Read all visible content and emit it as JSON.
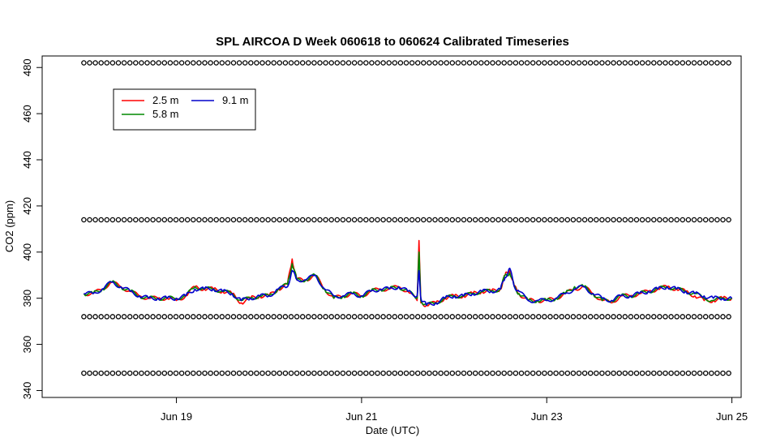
{
  "chart_data": {
    "type": "line",
    "title": "SPL AIRCOA D  Week 060618 to 060624  Calibrated Timeseries",
    "xlabel": "Date (UTC)",
    "ylabel": "CO2 (ppm)",
    "x_unit": "day of June 2006 (UTC)",
    "xlim": [
      17.55,
      25.1
    ],
    "ylim": [
      337,
      485
    ],
    "xticks": [
      {
        "value": 19,
        "label": "Jun 19"
      },
      {
        "value": 21,
        "label": "Jun 21"
      },
      {
        "value": 23,
        "label": "Jun 23"
      },
      {
        "value": 25,
        "label": "Jun 25"
      }
    ],
    "yticks": [
      340,
      360,
      380,
      400,
      420,
      440,
      460,
      480
    ],
    "grid": false,
    "legend": {
      "placement": "top-left"
    },
    "series": [
      {
        "name": "2.5 m",
        "color": "#ff0000",
        "x": [
          18.0,
          18.1,
          18.2,
          18.3,
          18.4,
          18.5,
          18.6,
          18.7,
          18.8,
          18.9,
          19.0,
          19.1,
          19.2,
          19.3,
          19.4,
          19.5,
          19.6,
          19.7,
          19.8,
          19.9,
          20.0,
          20.1,
          20.2,
          20.25,
          20.3,
          20.4,
          20.5,
          20.6,
          20.7,
          20.8,
          20.9,
          21.0,
          21.1,
          21.2,
          21.3,
          21.4,
          21.5,
          21.6,
          21.62,
          21.64,
          21.7,
          21.8,
          21.9,
          22.0,
          22.1,
          22.2,
          22.3,
          22.4,
          22.5,
          22.55,
          22.6,
          22.65,
          22.7,
          22.8,
          22.9,
          23.0,
          23.1,
          23.2,
          23.3,
          23.4,
          23.5,
          23.6,
          23.7,
          23.8,
          23.9,
          24.0,
          24.1,
          24.2,
          24.3,
          24.4,
          24.5,
          24.6,
          24.7,
          24.8,
          24.9,
          25.0
        ],
        "y": [
          382,
          382,
          384,
          387,
          385,
          383,
          381,
          380,
          380,
          380,
          379,
          381,
          385,
          384,
          384,
          383,
          382,
          378,
          380,
          381,
          381,
          384,
          386,
          397,
          388,
          388,
          390,
          384,
          380,
          381,
          382,
          381,
          383,
          384,
          384,
          385,
          383,
          379,
          405,
          378,
          377,
          378,
          380,
          381,
          381,
          382,
          383,
          383,
          384,
          390,
          392,
          385,
          382,
          379,
          379,
          379,
          380,
          382,
          384,
          385,
          382,
          379,
          378,
          381,
          381,
          382,
          383,
          384,
          385,
          384,
          383,
          381,
          379,
          379,
          380,
          380
        ]
      },
      {
        "name": "5.8 m",
        "color": "#008800",
        "x": [
          18.0,
          18.1,
          18.2,
          18.3,
          18.4,
          18.5,
          18.6,
          18.7,
          18.8,
          18.9,
          19.0,
          19.1,
          19.2,
          19.3,
          19.4,
          19.5,
          19.6,
          19.7,
          19.8,
          19.9,
          20.0,
          20.1,
          20.2,
          20.25,
          20.3,
          20.4,
          20.5,
          20.6,
          20.7,
          20.8,
          20.9,
          21.0,
          21.1,
          21.2,
          21.3,
          21.4,
          21.5,
          21.6,
          21.62,
          21.64,
          21.7,
          21.8,
          21.9,
          22.0,
          22.1,
          22.2,
          22.3,
          22.4,
          22.5,
          22.55,
          22.6,
          22.65,
          22.7,
          22.8,
          22.9,
          23.0,
          23.1,
          23.2,
          23.3,
          23.4,
          23.5,
          23.6,
          23.7,
          23.8,
          23.9,
          24.0,
          24.1,
          24.2,
          24.3,
          24.4,
          24.5,
          24.6,
          24.7,
          24.8,
          24.9,
          25.0
        ],
        "y": [
          382,
          382,
          384,
          387,
          385,
          383,
          381,
          380,
          380,
          380,
          380,
          381,
          385,
          384,
          384,
          383,
          382,
          379,
          380,
          381,
          381,
          384,
          386,
          395,
          388,
          388,
          390,
          384,
          380,
          381,
          382,
          381,
          383,
          384,
          384,
          385,
          383,
          380,
          400,
          379,
          377,
          378,
          380,
          381,
          381,
          382,
          383,
          383,
          384,
          390,
          391,
          385,
          382,
          379,
          379,
          379,
          380,
          382,
          385,
          385,
          382,
          379,
          379,
          381,
          381,
          382,
          383,
          384,
          385,
          384,
          383,
          382,
          380,
          379,
          380,
          380
        ]
      },
      {
        "name": "9.1 m",
        "color": "#0000cc",
        "x": [
          18.0,
          18.1,
          18.2,
          18.3,
          18.4,
          18.5,
          18.6,
          18.7,
          18.8,
          18.9,
          19.0,
          19.1,
          19.2,
          19.3,
          19.4,
          19.5,
          19.6,
          19.7,
          19.8,
          19.9,
          20.0,
          20.1,
          20.2,
          20.25,
          20.3,
          20.4,
          20.5,
          20.6,
          20.7,
          20.8,
          20.9,
          21.0,
          21.1,
          21.2,
          21.3,
          21.4,
          21.5,
          21.6,
          21.62,
          21.64,
          21.7,
          21.8,
          21.9,
          22.0,
          22.1,
          22.2,
          22.3,
          22.4,
          22.5,
          22.55,
          22.6,
          22.65,
          22.7,
          22.8,
          22.9,
          23.0,
          23.1,
          23.2,
          23.3,
          23.4,
          23.5,
          23.6,
          23.7,
          23.8,
          23.9,
          24.0,
          24.1,
          24.2,
          24.3,
          24.4,
          24.5,
          24.6,
          24.7,
          24.8,
          24.9,
          25.0
        ],
        "y": [
          382,
          382,
          384,
          387,
          385,
          383,
          381,
          380,
          380,
          380,
          380,
          381,
          384,
          384,
          384,
          383,
          382,
          379,
          380,
          381,
          381,
          384,
          385,
          392,
          388,
          388,
          390,
          384,
          381,
          381,
          382,
          381,
          383,
          384,
          384,
          385,
          383,
          381,
          392,
          380,
          377,
          378,
          380,
          381,
          381,
          382,
          383,
          383,
          384,
          389,
          393,
          385,
          383,
          379,
          379,
          379,
          380,
          382,
          384,
          385,
          382,
          380,
          379,
          381,
          381,
          382,
          383,
          384,
          385,
          384,
          383,
          382,
          381,
          380,
          380,
          380
        ]
      },
      {
        "name": "",
        "mode": "markers",
        "marker": "open-circle",
        "color": "#000000",
        "y_levels": [
          347.5,
          372,
          414,
          482
        ],
        "x_range": [
          18.0,
          25.0
        ]
      }
    ]
  }
}
